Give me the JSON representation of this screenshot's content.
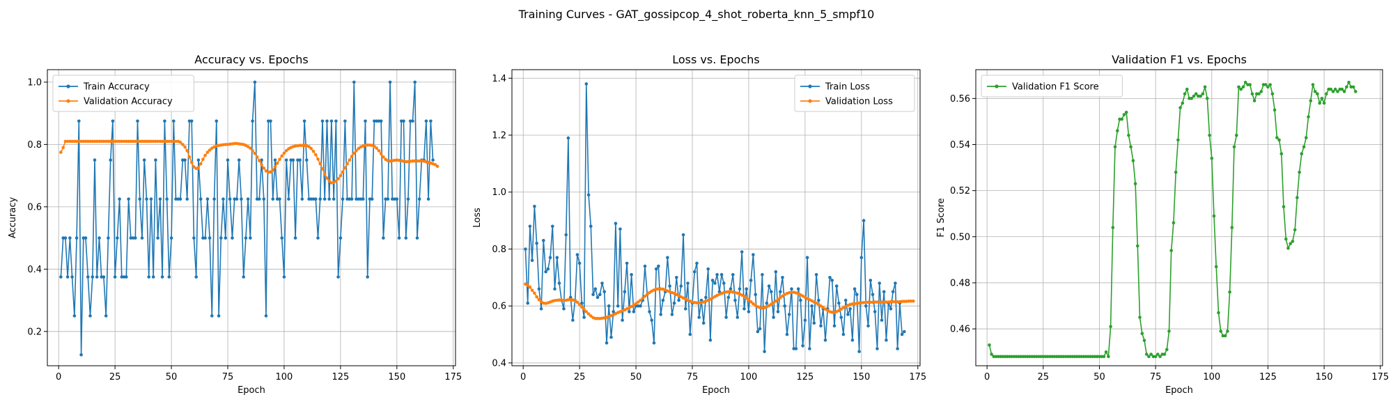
{
  "figure": {
    "suptitle": "Training Curves - GAT_gossipcop_4_shot_roberta_knn_5_smpf10"
  },
  "chart_data": [
    {
      "type": "line",
      "title": "Accuracy vs. Epochs",
      "xlabel": "Epoch",
      "ylabel": "Accuracy",
      "xlim": [
        -5,
        176
      ],
      "ylim": [
        0.09,
        1.04
      ],
      "xticks": [
        0,
        25,
        50,
        75,
        100,
        125,
        150,
        175
      ],
      "yticks": [
        0.2,
        0.4,
        0.6,
        0.8,
        1.0
      ],
      "ytick_labels": [
        "0.2",
        "0.4",
        "0.6",
        "0.8",
        "1.0"
      ],
      "grid": true,
      "legend": "upper-left",
      "series": [
        {
          "name": "Train Accuracy",
          "color": "#1f77b4",
          "values": [
            0.375,
            0.5,
            0.5,
            0.375,
            0.5,
            0.375,
            0.25,
            0.5,
            0.875,
            0.125,
            0.5,
            0.5,
            0.375,
            0.25,
            0.375,
            0.75,
            0.375,
            0.5,
            0.375,
            0.375,
            0.25,
            0.5,
            0.75,
            0.875,
            0.375,
            0.5,
            0.625,
            0.375,
            0.375,
            0.375,
            0.625,
            0.5,
            0.5,
            0.5,
            0.875,
            0.625,
            0.5,
            0.75,
            0.625,
            0.375,
            0.625,
            0.375,
            0.75,
            0.5,
            0.625,
            0.375,
            0.875,
            0.625,
            0.375,
            0.5,
            0.875,
            0.625,
            0.625,
            0.625,
            0.75,
            0.75,
            0.625,
            0.875,
            0.875,
            0.5,
            0.375,
            0.75,
            0.625,
            0.5,
            0.5,
            0.625,
            0.5,
            0.25,
            0.625,
            0.875,
            0.25,
            0.5,
            0.625,
            0.5,
            0.75,
            0.625,
            0.5,
            0.625,
            0.625,
            0.75,
            0.625,
            0.375,
            0.5,
            0.625,
            0.5,
            0.875,
            1.0,
            0.625,
            0.625,
            0.75,
            0.625,
            0.25,
            0.875,
            0.875,
            0.625,
            0.75,
            0.625,
            0.625,
            0.5,
            0.375,
            0.75,
            0.625,
            0.75,
            0.75,
            0.5,
            0.75,
            0.75,
            0.625,
            0.875,
            0.75,
            0.625,
            0.625,
            0.625,
            0.625,
            0.5,
            0.625,
            0.875,
            0.625,
            0.875,
            0.625,
            0.875,
            0.625,
            0.875,
            0.375,
            0.5,
            0.625,
            0.875,
            0.625,
            0.625,
            0.625,
            1.0,
            0.625,
            0.625,
            0.625,
            0.625,
            0.875,
            0.375,
            0.625,
            0.625,
            0.875,
            0.875,
            0.875,
            0.875,
            0.5,
            0.625,
            0.625,
            1.0,
            0.625,
            0.625,
            0.625,
            0.5,
            0.875,
            0.875,
            0.5,
            0.625,
            0.875,
            0.875,
            1.0,
            0.5,
            0.625,
            0.75,
            0.75,
            0.875,
            0.625,
            0.875,
            0.75
          ]
        },
        {
          "name": "Validation Accuracy",
          "color": "#ff7f0e",
          "values": [
            0.775,
            0.79,
            0.81,
            0.81,
            0.81,
            0.81,
            0.81,
            0.81,
            0.81,
            0.81,
            0.81,
            0.81,
            0.81,
            0.81,
            0.81,
            0.81,
            0.81,
            0.81,
            0.81,
            0.81,
            0.81,
            0.81,
            0.81,
            0.81,
            0.81,
            0.81,
            0.81,
            0.81,
            0.81,
            0.81,
            0.81,
            0.81,
            0.81,
            0.81,
            0.81,
            0.81,
            0.81,
            0.81,
            0.81,
            0.81,
            0.81,
            0.81,
            0.81,
            0.81,
            0.81,
            0.81,
            0.81,
            0.81,
            0.81,
            0.81,
            0.81,
            0.81,
            0.81,
            0.807,
            0.8,
            0.792,
            0.78,
            0.76,
            0.742,
            0.728,
            0.723,
            0.725,
            0.738,
            0.752,
            0.765,
            0.775,
            0.782,
            0.788,
            0.792,
            0.795,
            0.797,
            0.798,
            0.799,
            0.8,
            0.8,
            0.801,
            0.802,
            0.803,
            0.803,
            0.802,
            0.801,
            0.8,
            0.797,
            0.793,
            0.788,
            0.78,
            0.771,
            0.76,
            0.748,
            0.735,
            0.724,
            0.715,
            0.711,
            0.712,
            0.718,
            0.728,
            0.74,
            0.752,
            0.763,
            0.772,
            0.78,
            0.786,
            0.79,
            0.793,
            0.795,
            0.796,
            0.797,
            0.797,
            0.797,
            0.796,
            0.793,
            0.787,
            0.778,
            0.767,
            0.753,
            0.738,
            0.722,
            0.706,
            0.692,
            0.683,
            0.677,
            0.678,
            0.682,
            0.69,
            0.7,
            0.712,
            0.725,
            0.738,
            0.75,
            0.762,
            0.772,
            0.78,
            0.787,
            0.792,
            0.795,
            0.797,
            0.798,
            0.798,
            0.797,
            0.794,
            0.788,
            0.78,
            0.77,
            0.76,
            0.752,
            0.748,
            0.747,
            0.748,
            0.749,
            0.75,
            0.749,
            0.748,
            0.746,
            0.745,
            0.745,
            0.746,
            0.747,
            0.747,
            0.747,
            0.747,
            0.748,
            0.746,
            0.744,
            0.742,
            0.74,
            0.738,
            0.735,
            0.73
          ]
        }
      ]
    },
    {
      "type": "line",
      "title": "Loss vs. Epochs",
      "xlabel": "Epoch",
      "ylabel": "Loss",
      "xlim": [
        -5,
        176
      ],
      "ylim": [
        0.39,
        1.43
      ],
      "xticks": [
        0,
        25,
        50,
        75,
        100,
        125,
        150,
        175
      ],
      "yticks": [
        0.4,
        0.6,
        0.8,
        1.0,
        1.2,
        1.4
      ],
      "ytick_labels": [
        "0.4",
        "0.6",
        "0.8",
        "1.0",
        "1.2",
        "1.4"
      ],
      "grid": true,
      "legend": "upper-right",
      "series": [
        {
          "name": "Train Loss",
          "color": "#1f77b4",
          "values": [
            0.8,
            0.61,
            0.88,
            0.76,
            0.95,
            0.82,
            0.66,
            0.59,
            0.83,
            0.72,
            0.73,
            0.77,
            0.88,
            0.66,
            0.77,
            0.68,
            0.62,
            0.59,
            0.85,
            1.19,
            0.63,
            0.55,
            0.62,
            0.78,
            0.75,
            0.61,
            0.56,
            1.38,
            0.99,
            0.88,
            0.64,
            0.66,
            0.63,
            0.64,
            0.68,
            0.65,
            0.47,
            0.6,
            0.49,
            0.58,
            0.89,
            0.6,
            0.87,
            0.55,
            0.65,
            0.75,
            0.58,
            0.71,
            0.58,
            0.6,
            0.6,
            0.6,
            0.62,
            0.74,
            0.64,
            0.58,
            0.55,
            0.47,
            0.73,
            0.74,
            0.57,
            0.62,
            0.65,
            0.77,
            0.67,
            0.57,
            0.61,
            0.7,
            0.62,
            0.67,
            0.85,
            0.59,
            0.68,
            0.5,
            0.61,
            0.72,
            0.75,
            0.56,
            0.62,
            0.54,
            0.63,
            0.73,
            0.48,
            0.69,
            0.68,
            0.71,
            0.65,
            0.71,
            0.68,
            0.56,
            0.63,
            0.66,
            0.71,
            0.62,
            0.56,
            0.66,
            0.79,
            0.59,
            0.66,
            0.58,
            0.69,
            0.78,
            0.64,
            0.51,
            0.52,
            0.71,
            0.44,
            0.61,
            0.67,
            0.65,
            0.56,
            0.72,
            0.58,
            0.65,
            0.7,
            0.6,
            0.5,
            0.57,
            0.66,
            0.45,
            0.45,
            0.66,
            0.62,
            0.46,
            0.55,
            0.77,
            0.45,
            0.6,
            0.54,
            0.71,
            0.62,
            0.53,
            0.59,
            0.48,
            0.59,
            0.7,
            0.69,
            0.53,
            0.67,
            0.61,
            0.56,
            0.5,
            0.62,
            0.57,
            0.59,
            0.48,
            0.66,
            0.64,
            0.44,
            0.77,
            0.9,
            0.6,
            0.53,
            0.69,
            0.64,
            0.58,
            0.45,
            0.68,
            0.55,
            0.65,
            0.48,
            0.61,
            0.59,
            0.65,
            0.68,
            0.45,
            0.61,
            0.5,
            0.51
          ]
        },
        {
          "name": "Validation Loss",
          "color": "#ff7f0e",
          "values": [
            0.677,
            0.672,
            0.666,
            0.655,
            0.645,
            0.632,
            0.622,
            0.615,
            0.61,
            0.609,
            0.611,
            0.614,
            0.617,
            0.619,
            0.62,
            0.621,
            0.621,
            0.62,
            0.62,
            0.622,
            0.622,
            0.621,
            0.619,
            0.613,
            0.605,
            0.596,
            0.588,
            0.58,
            0.572,
            0.565,
            0.559,
            0.556,
            0.556,
            0.556,
            0.557,
            0.558,
            0.56,
            0.563,
            0.566,
            0.569,
            0.573,
            0.577,
            0.58,
            0.583,
            0.586,
            0.59,
            0.594,
            0.598,
            0.603,
            0.608,
            0.614,
            0.62,
            0.627,
            0.634,
            0.641,
            0.647,
            0.652,
            0.656,
            0.659,
            0.66,
            0.66,
            0.659,
            0.656,
            0.653,
            0.65,
            0.647,
            0.644,
            0.64,
            0.636,
            0.632,
            0.628,
            0.624,
            0.62,
            0.617,
            0.614,
            0.612,
            0.611,
            0.611,
            0.612,
            0.614,
            0.617,
            0.62,
            0.624,
            0.628,
            0.633,
            0.637,
            0.641,
            0.644,
            0.647,
            0.649,
            0.65,
            0.65,
            0.649,
            0.647,
            0.645,
            0.642,
            0.638,
            0.634,
            0.628,
            0.622,
            0.615,
            0.608,
            0.602,
            0.597,
            0.594,
            0.593,
            0.594,
            0.597,
            0.601,
            0.606,
            0.611,
            0.617,
            0.623,
            0.629,
            0.635,
            0.64,
            0.644,
            0.647,
            0.648,
            0.648,
            0.646,
            0.643,
            0.639,
            0.635,
            0.63,
            0.626,
            0.622,
            0.618,
            0.614,
            0.61,
            0.605,
            0.6,
            0.595,
            0.589,
            0.584,
            0.58,
            0.578,
            0.578,
            0.58,
            0.584,
            0.589,
            0.594,
            0.598,
            0.602,
            0.605,
            0.607,
            0.608,
            0.609,
            0.61,
            0.611,
            0.612,
            0.613,
            0.613,
            0.613,
            0.613,
            0.614,
            0.614,
            0.614,
            0.614,
            0.614,
            0.614,
            0.614,
            0.615,
            0.615,
            0.615,
            0.615,
            0.615,
            0.616,
            0.616,
            0.616,
            0.617,
            0.617,
            0.617
          ]
        }
      ]
    },
    {
      "type": "line",
      "title": "Validation F1 vs. Epochs",
      "xlabel": "Epoch",
      "ylabel": "F1 Score",
      "xlim": [
        -5,
        176
      ],
      "ylim": [
        0.444,
        0.5725
      ],
      "xticks": [
        0,
        25,
        50,
        75,
        100,
        125,
        150,
        175
      ],
      "yticks": [
        0.46,
        0.48,
        0.5,
        0.52,
        0.54,
        0.56
      ],
      "ytick_labels": [
        "0.46",
        "0.48",
        "0.50",
        "0.52",
        "0.54",
        "0.56"
      ],
      "grid": true,
      "legend": "upper-left",
      "series": [
        {
          "name": "Validation F1 Score",
          "color": "#2ca02c",
          "values": [
            0.453,
            0.449,
            0.448,
            0.448,
            0.448,
            0.448,
            0.448,
            0.448,
            0.448,
            0.448,
            0.448,
            0.448,
            0.448,
            0.448,
            0.448,
            0.448,
            0.448,
            0.448,
            0.448,
            0.448,
            0.448,
            0.448,
            0.448,
            0.448,
            0.448,
            0.448,
            0.448,
            0.448,
            0.448,
            0.448,
            0.448,
            0.448,
            0.448,
            0.448,
            0.448,
            0.448,
            0.448,
            0.448,
            0.448,
            0.448,
            0.448,
            0.448,
            0.448,
            0.448,
            0.448,
            0.448,
            0.448,
            0.448,
            0.448,
            0.448,
            0.448,
            0.448,
            0.45,
            0.448,
            0.461,
            0.504,
            0.539,
            0.546,
            0.551,
            0.551,
            0.553,
            0.554,
            0.544,
            0.539,
            0.533,
            0.523,
            0.496,
            0.465,
            0.458,
            0.455,
            0.449,
            0.448,
            0.449,
            0.448,
            0.448,
            0.449,
            0.448,
            0.449,
            0.449,
            0.451,
            0.459,
            0.494,
            0.506,
            0.528,
            0.542,
            0.556,
            0.558,
            0.562,
            0.564,
            0.56,
            0.56,
            0.561,
            0.562,
            0.561,
            0.561,
            0.562,
            0.565,
            0.56,
            0.544,
            0.534,
            0.509,
            0.487,
            0.467,
            0.459,
            0.457,
            0.457,
            0.459,
            0.476,
            0.504,
            0.539,
            0.544,
            0.565,
            0.564,
            0.565,
            0.567,
            0.566,
            0.566,
            0.562,
            0.559,
            0.562,
            0.562,
            0.563,
            0.566,
            0.566,
            0.565,
            0.566,
            0.562,
            0.555,
            0.543,
            0.542,
            0.536,
            0.513,
            0.499,
            0.495,
            0.497,
            0.498,
            0.503,
            0.517,
            0.528,
            0.536,
            0.539,
            0.543,
            0.552,
            0.559,
            0.566,
            0.563,
            0.562,
            0.558,
            0.56,
            0.558,
            0.562,
            0.564,
            0.564,
            0.563,
            0.564,
            0.563,
            0.564,
            0.564,
            0.563,
            0.565,
            0.567,
            0.565,
            0.565,
            0.563
          ]
        }
      ]
    }
  ]
}
